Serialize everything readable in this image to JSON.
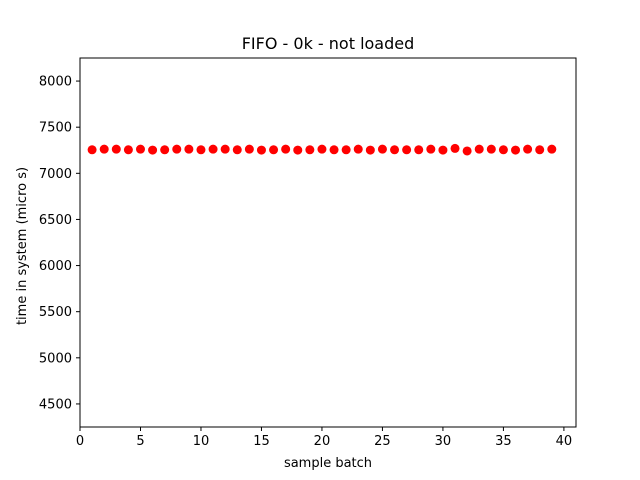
{
  "chart_data": {
    "type": "scatter",
    "title": "FIFO - 0k - not loaded",
    "xlabel": "sample batch",
    "ylabel": "time in system (micro s)",
    "xlim": [
      0,
      41
    ],
    "ylim": [
      4250,
      8250
    ],
    "xticks": [
      0,
      5,
      10,
      15,
      20,
      25,
      30,
      35,
      40
    ],
    "yticks": [
      4500,
      5000,
      5500,
      6000,
      6500,
      7000,
      7500,
      8000
    ],
    "grid": false,
    "legend": "none",
    "marker_color": "#ff0000",
    "series": [
      {
        "x": [
          1,
          2,
          3,
          4,
          5,
          6,
          7,
          8,
          9,
          10,
          11,
          12,
          13,
          14,
          15,
          16,
          17,
          18,
          19,
          20,
          21,
          22,
          23,
          24,
          25,
          26,
          27,
          28,
          29,
          30,
          31,
          32,
          33,
          34,
          35,
          36,
          37,
          38,
          39
        ],
        "y": [
          7255,
          7262,
          7262,
          7255,
          7262,
          7252,
          7255,
          7262,
          7262,
          7255,
          7262,
          7262,
          7255,
          7262,
          7252,
          7255,
          7262,
          7252,
          7255,
          7262,
          7255,
          7255,
          7262,
          7252,
          7262,
          7255,
          7255,
          7255,
          7262,
          7252,
          7270,
          7242,
          7262,
          7262,
          7255,
          7252,
          7262,
          7255,
          7262
        ]
      }
    ]
  }
}
